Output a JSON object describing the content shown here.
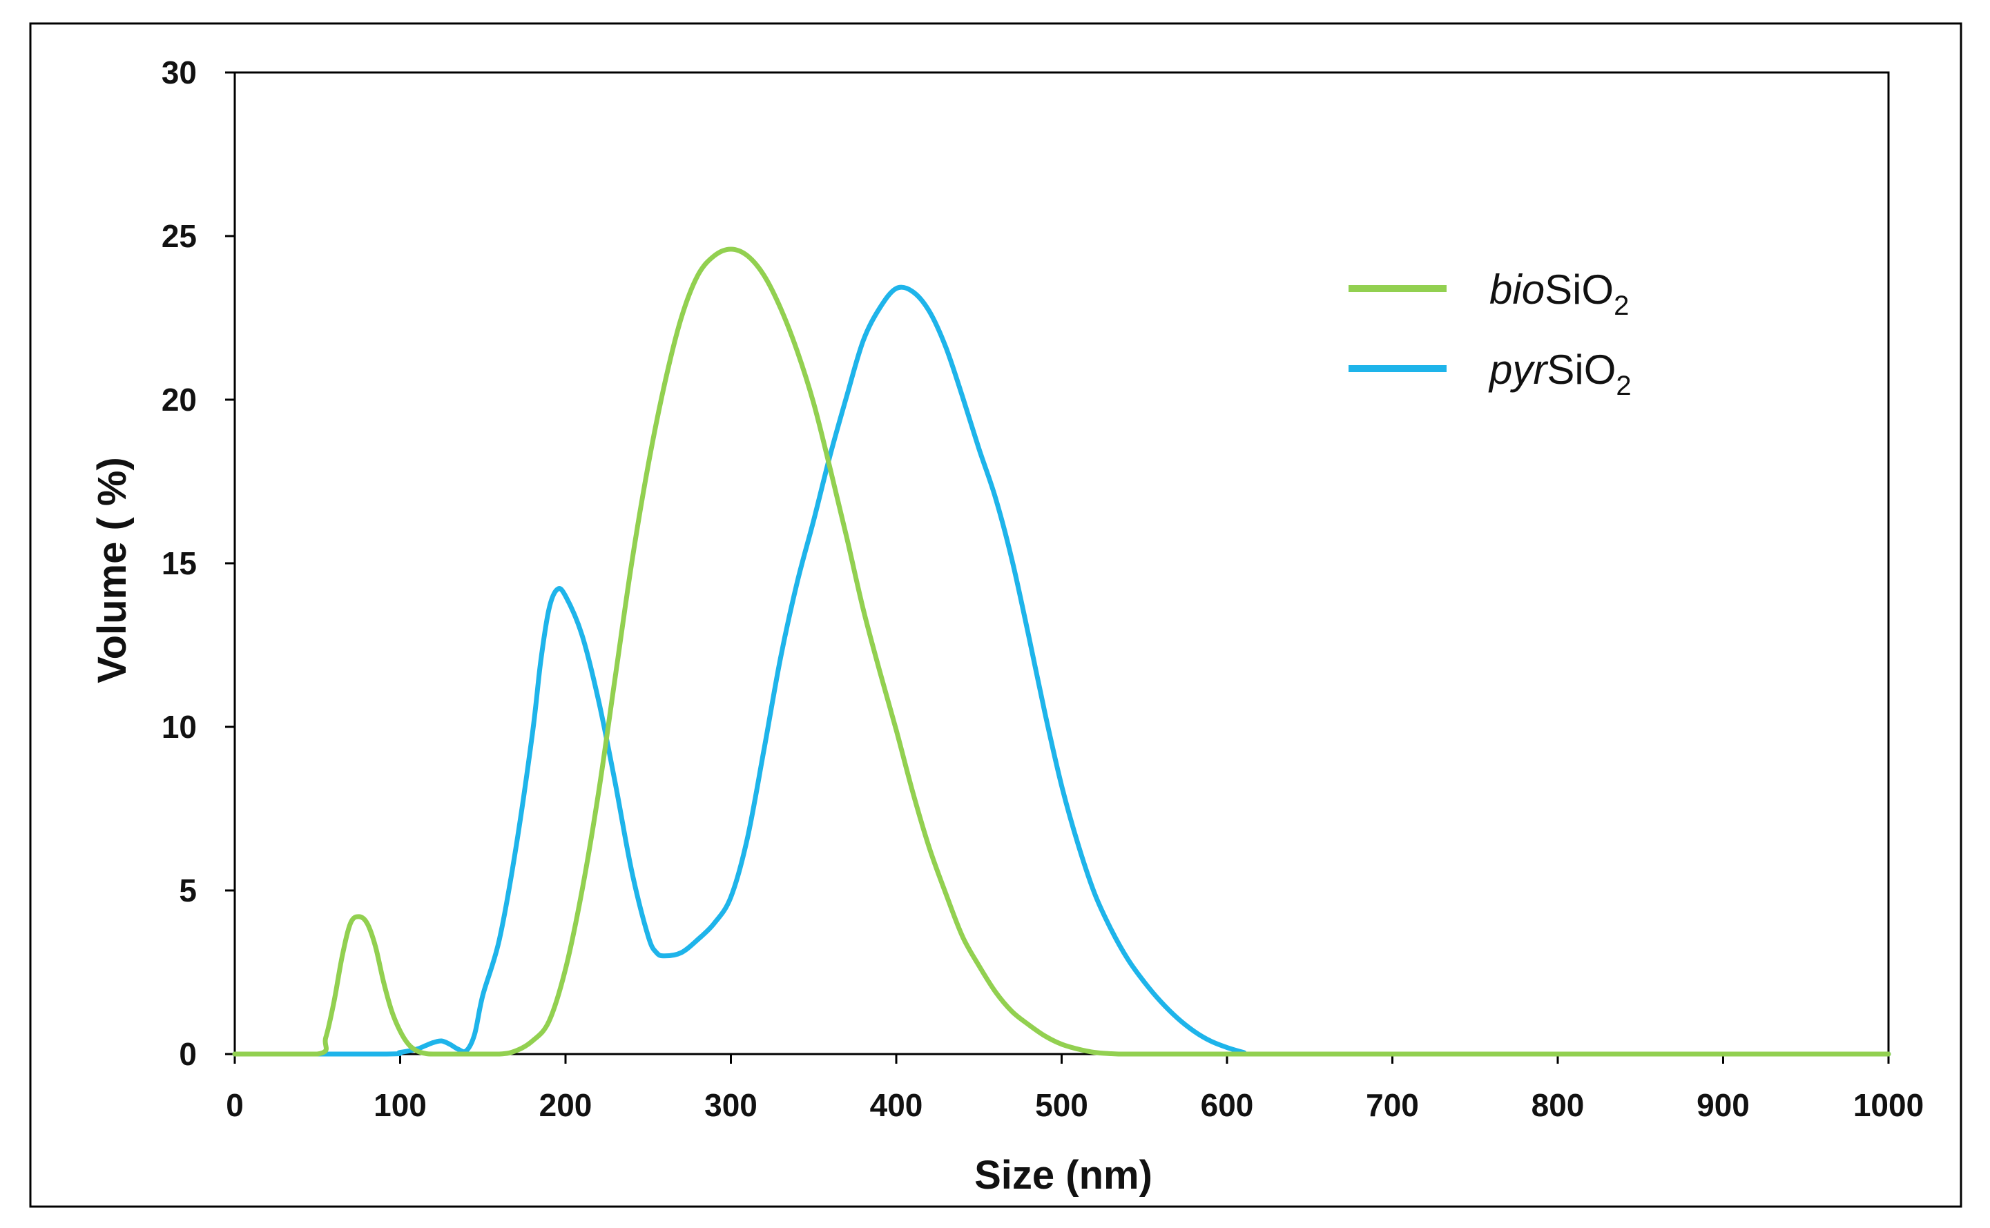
{
  "chart_data": {
    "type": "line",
    "title": "",
    "xlabel": "Size (nm)",
    "ylabel": "Volume ( %)",
    "xlim": [
      0,
      1000
    ],
    "ylim": [
      0,
      30
    ],
    "xticks": [
      0,
      100,
      200,
      300,
      400,
      500,
      600,
      700,
      800,
      900,
      1000
    ],
    "yticks": [
      0,
      5,
      10,
      15,
      20,
      25,
      30
    ],
    "grid": false,
    "legend_position": "top-right",
    "series": [
      {
        "name": "bioSiO2",
        "name_italic": "bio",
        "name_main": "SiO",
        "name_sub": "2",
        "color": "#92D050",
        "x": [
          0,
          50,
          55,
          60,
          65,
          70,
          75,
          80,
          85,
          90,
          95,
          100,
          105,
          110,
          115,
          120,
          140,
          160,
          170,
          180,
          190,
          200,
          210,
          220,
          230,
          240,
          250,
          260,
          270,
          280,
          290,
          300,
          310,
          320,
          330,
          340,
          350,
          360,
          370,
          380,
          390,
          400,
          410,
          420,
          430,
          440,
          450,
          460,
          470,
          480,
          490,
          500,
          510,
          520,
          530,
          535,
          540,
          600,
          700,
          800,
          900,
          1000
        ],
        "y": [
          0,
          0,
          0.5,
          1.6,
          3.0,
          4.0,
          4.2,
          4.0,
          3.3,
          2.2,
          1.3,
          0.7,
          0.3,
          0.1,
          0.02,
          0,
          0,
          0,
          0.1,
          0.4,
          1.0,
          2.6,
          5.0,
          8.0,
          11.5,
          15.0,
          18.0,
          20.5,
          22.5,
          23.8,
          24.4,
          24.6,
          24.4,
          23.8,
          22.8,
          21.5,
          19.9,
          17.9,
          15.8,
          13.6,
          11.7,
          9.9,
          8.0,
          6.3,
          4.9,
          3.6,
          2.7,
          1.9,
          1.3,
          0.9,
          0.55,
          0.3,
          0.15,
          0.05,
          0.01,
          0,
          0,
          0,
          0,
          0,
          0,
          0
        ]
      },
      {
        "name": "pyrSiO2",
        "name_italic": "pyr",
        "name_main": "SiO",
        "name_sub": "2",
        "color": "#1EB4EA",
        "x": [
          0,
          90,
          100,
          110,
          115,
          120,
          125,
          130,
          135,
          140,
          145,
          150,
          160,
          170,
          180,
          185,
          190,
          195,
          200,
          210,
          220,
          230,
          240,
          250,
          255,
          260,
          270,
          280,
          290,
          300,
          310,
          320,
          330,
          340,
          350,
          360,
          370,
          380,
          390,
          400,
          410,
          420,
          430,
          440,
          450,
          460,
          470,
          480,
          490,
          500,
          510,
          520,
          530,
          540,
          550,
          560,
          570,
          580,
          590,
          600,
          610,
          615,
          700,
          800,
          900,
          1000
        ],
        "y": [
          0,
          0,
          0.05,
          0.15,
          0.25,
          0.35,
          0.4,
          0.3,
          0.15,
          0.1,
          0.6,
          1.8,
          3.5,
          6.3,
          9.8,
          12.0,
          13.6,
          14.2,
          14.0,
          12.8,
          10.8,
          8.3,
          5.6,
          3.6,
          3.1,
          3.0,
          3.1,
          3.5,
          4.0,
          4.8,
          6.6,
          9.3,
          12.1,
          14.4,
          16.3,
          18.3,
          20.1,
          21.8,
          22.8,
          23.4,
          23.3,
          22.7,
          21.6,
          20.1,
          18.5,
          17.0,
          15.1,
          12.8,
          10.4,
          8.2,
          6.4,
          4.9,
          3.8,
          2.9,
          2.2,
          1.6,
          1.1,
          0.7,
          0.4,
          0.2,
          0.05,
          0,
          0,
          0,
          0,
          0
        ]
      }
    ]
  }
}
